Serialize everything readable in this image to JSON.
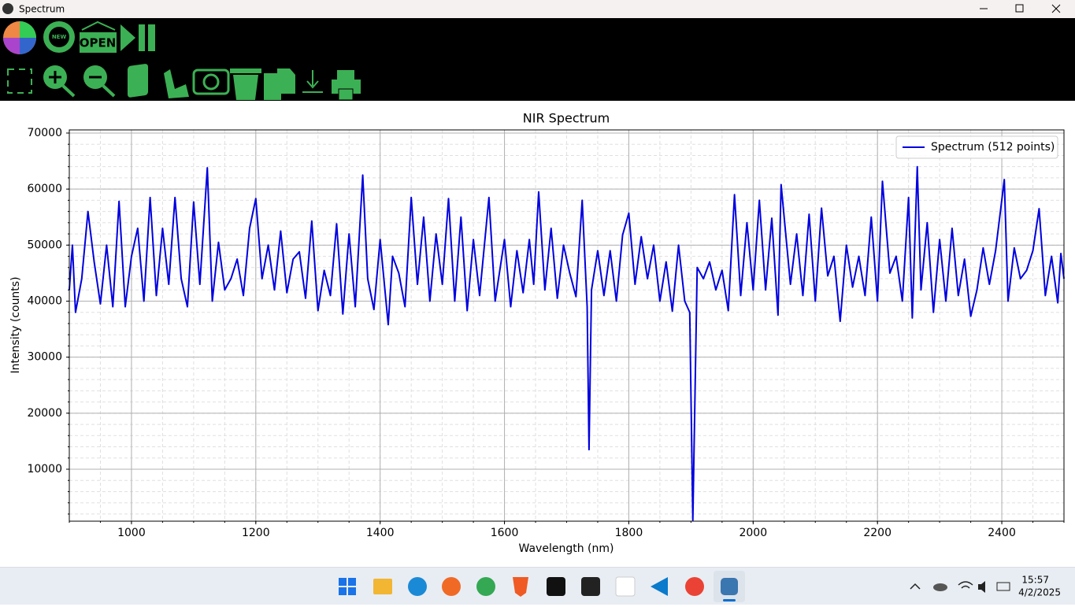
{
  "window": {
    "title": "Spectrum"
  },
  "toolbar": {
    "new_label": "NEW",
    "open_label": "OPEN"
  },
  "chart_data": {
    "type": "line",
    "title": "NIR Spectrum",
    "x_label": "Wavelength (nm)",
    "y_label": "Intensity (counts)",
    "xlim": [
      900,
      2500
    ],
    "ylim": [
      726,
      70560
    ],
    "xticks": [
      1000,
      1200,
      1400,
      1600,
      1800,
      2000,
      2200,
      2400
    ],
    "yticks": [
      10000,
      20000,
      30000,
      40000,
      50000,
      60000,
      70000
    ],
    "grid": true,
    "minor_grid": true,
    "legend": "upper right",
    "x": [
      900,
      905,
      910,
      920,
      930,
      940,
      950,
      960,
      970,
      980,
      990,
      1000,
      1010,
      1020,
      1030,
      1040,
      1050,
      1060,
      1070,
      1080,
      1090,
      1100,
      1110,
      1122,
      1130,
      1140,
      1150,
      1160,
      1170,
      1180,
      1190,
      1200,
      1210,
      1220,
      1230,
      1240,
      1250,
      1260,
      1270,
      1280,
      1290,
      1300,
      1310,
      1320,
      1330,
      1340,
      1350,
      1360,
      1372,
      1380,
      1390,
      1400,
      1413,
      1420,
      1430,
      1440,
      1450,
      1460,
      1470,
      1480,
      1490,
      1500,
      1510,
      1520,
      1530,
      1540,
      1550,
      1560,
      1575,
      1585,
      1600,
      1610,
      1620,
      1630,
      1640,
      1647,
      1655,
      1665,
      1675,
      1685,
      1695,
      1705,
      1715,
      1725,
      1733,
      1736,
      1740,
      1750,
      1760,
      1770,
      1780,
      1790,
      1800,
      1810,
      1820,
      1830,
      1840,
      1850,
      1860,
      1870,
      1880,
      1890,
      1898,
      1903,
      1910,
      1920,
      1930,
      1940,
      1950,
      1960,
      1970,
      1980,
      1990,
      2000,
      2010,
      2020,
      2030,
      2040,
      2045,
      2060,
      2070,
      2080,
      2090,
      2100,
      2110,
      2120,
      2130,
      2140,
      2150,
      2160,
      2170,
      2180,
      2190,
      2200,
      2208,
      2220,
      2230,
      2240,
      2250,
      2256,
      2264,
      2270,
      2280,
      2290,
      2300,
      2310,
      2320,
      2330,
      2340,
      2350,
      2360,
      2370,
      2380,
      2390,
      2404,
      2410,
      2420,
      2430,
      2440,
      2450,
      2460,
      2470,
      2480,
      2490,
      2495,
      2500
    ],
    "series": [
      {
        "name": "Spectrum (512 points)",
        "color": "#0000e0",
        "values": [
          42000,
          50000,
          38000,
          44000,
          56000,
          47000,
          39500,
          50000,
          39000,
          57800,
          39000,
          48000,
          53000,
          40000,
          58500,
          41000,
          53000,
          43000,
          58500,
          44000,
          39000,
          57700,
          43000,
          63800,
          40000,
          50500,
          42000,
          44000,
          47500,
          41000,
          53000,
          58300,
          44000,
          50000,
          42000,
          52500,
          41500,
          47500,
          48800,
          40500,
          54300,
          38300,
          45500,
          41000,
          53800,
          37700,
          52000,
          39000,
          62500,
          44000,
          38500,
          51000,
          35800,
          48000,
          45000,
          39000,
          58500,
          43000,
          55000,
          40000,
          52000,
          43000,
          58300,
          40000,
          55000,
          38300,
          51000,
          41000,
          58500,
          40000,
          51000,
          39000,
          49000,
          41500,
          51000,
          43000,
          59500,
          42000,
          53000,
          40500,
          50000,
          45000,
          40800,
          58000,
          39000,
          13500,
          42000,
          49000,
          41000,
          49000,
          40000,
          51800,
          55700,
          43000,
          51500,
          44000,
          50000,
          40000,
          47000,
          38200,
          50000,
          40000,
          38000,
          900,
          46000,
          44000,
          47000,
          42000,
          45500,
          38300,
          59000,
          41000,
          54000,
          42000,
          58000,
          42000,
          54800,
          37500,
          60800,
          43000,
          52000,
          41000,
          55500,
          40000,
          56600,
          44500,
          48000,
          36400,
          50000,
          42500,
          48000,
          41000,
          55000,
          40000,
          61400,
          45000,
          48000,
          40000,
          58500,
          37000,
          64000,
          42000,
          54000,
          38000,
          51000,
          40000,
          53000,
          41000,
          47500,
          37300,
          42000,
          49500,
          43000,
          49000,
          61700,
          40000,
          49500,
          44000,
          45500,
          49000,
          56500,
          41000,
          48000,
          39700,
          48500,
          44000
        ]
      }
    ]
  },
  "taskbar": {
    "time": "15:57",
    "date": "4/2/2025"
  }
}
